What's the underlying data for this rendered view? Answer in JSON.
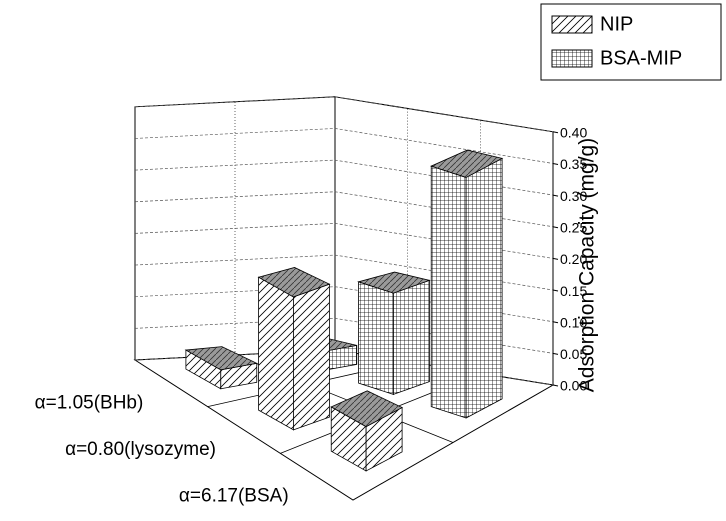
{
  "chart_data": {
    "type": "bar3d",
    "categories": [
      "α=1.05(BHb)",
      "α=0.80(lysozyme)",
      "α=6.17(BSA)"
    ],
    "series": [
      {
        "name": "NIP",
        "pattern": "hatch",
        "values": [
          0.03,
          0.21,
          0.07
        ]
      },
      {
        "name": "BSA-MIP",
        "pattern": "grid",
        "values": [
          0.03,
          0.16,
          0.38
        ]
      }
    ],
    "z_label": "Adsorption Capacity (mg/g)",
    "zlim": [
      0,
      0.4
    ],
    "zticks": [
      {
        "value": 0,
        "label": "0.00"
      },
      0.05,
      {
        "value": 0.1,
        "label": "0.10"
      },
      0.15,
      {
        "value": 0.2,
        "label": "0.20"
      },
      0.25,
      {
        "value": 0.3,
        "label": "0.30"
      },
      0.35,
      {
        "value": 0.4,
        "label": "0.40"
      }
    ],
    "grid": true
  }
}
